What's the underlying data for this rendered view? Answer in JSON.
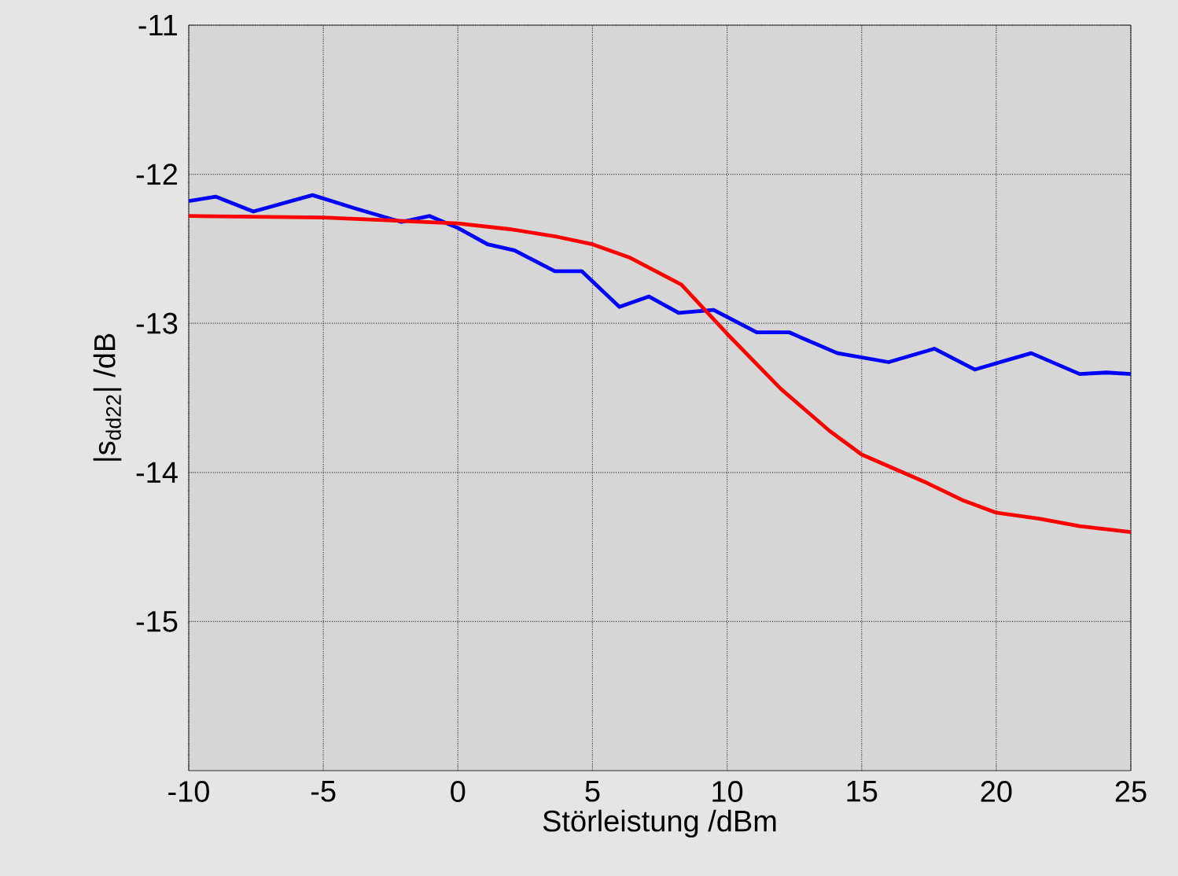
{
  "chart_data": {
    "type": "line",
    "xlabel": "Störleistung /dBm",
    "ylabel": "|s$_{dd22}$| /dB",
    "xlim": [
      -10,
      25
    ],
    "ylim": [
      -16,
      -11
    ],
    "xticks": [
      -10,
      -5,
      0,
      5,
      10,
      15,
      20,
      25
    ],
    "yticks": [
      -11,
      -12,
      -13,
      -14,
      -15
    ],
    "grid": true,
    "line_style": "solid",
    "series": [
      {
        "color": "#0000ff",
        "x": [
          -10,
          -9,
          -7.6,
          -5.4,
          -3.8,
          -2.1,
          -1.05,
          0,
          1.1,
          2.1,
          3.6,
          4.6,
          6,
          7.1,
          8.2,
          9.5,
          11.1,
          12.3,
          14.1,
          16,
          17.7,
          19.2,
          21.3,
          23.1,
          24.1,
          25
        ],
        "values": [
          -12.18,
          -12.15,
          -12.25,
          -12.14,
          -12.23,
          -12.32,
          -12.28,
          -12.36,
          -12.47,
          -12.51,
          -12.65,
          -12.65,
          -12.89,
          -12.82,
          -12.93,
          -12.91,
          -13.06,
          -13.06,
          -13.2,
          -13.26,
          -13.17,
          -13.31,
          -13.2,
          -13.34,
          -13.33,
          -13.34
        ]
      },
      {
        "color": "#ff0000",
        "x": [
          -10,
          -5,
          0,
          2,
          3.7,
          5,
          6.4,
          8.3,
          10,
          12,
          13.8,
          15,
          17.3,
          18.8,
          20,
          21.6,
          23.1,
          25
        ],
        "values": [
          -12.28,
          -12.29,
          -12.33,
          -12.37,
          -12.42,
          -12.47,
          -12.56,
          -12.74,
          -13.07,
          -13.44,
          -13.72,
          -13.88,
          -14.06,
          -14.19,
          -14.27,
          -14.31,
          -14.36,
          -14.4
        ]
      }
    ]
  }
}
